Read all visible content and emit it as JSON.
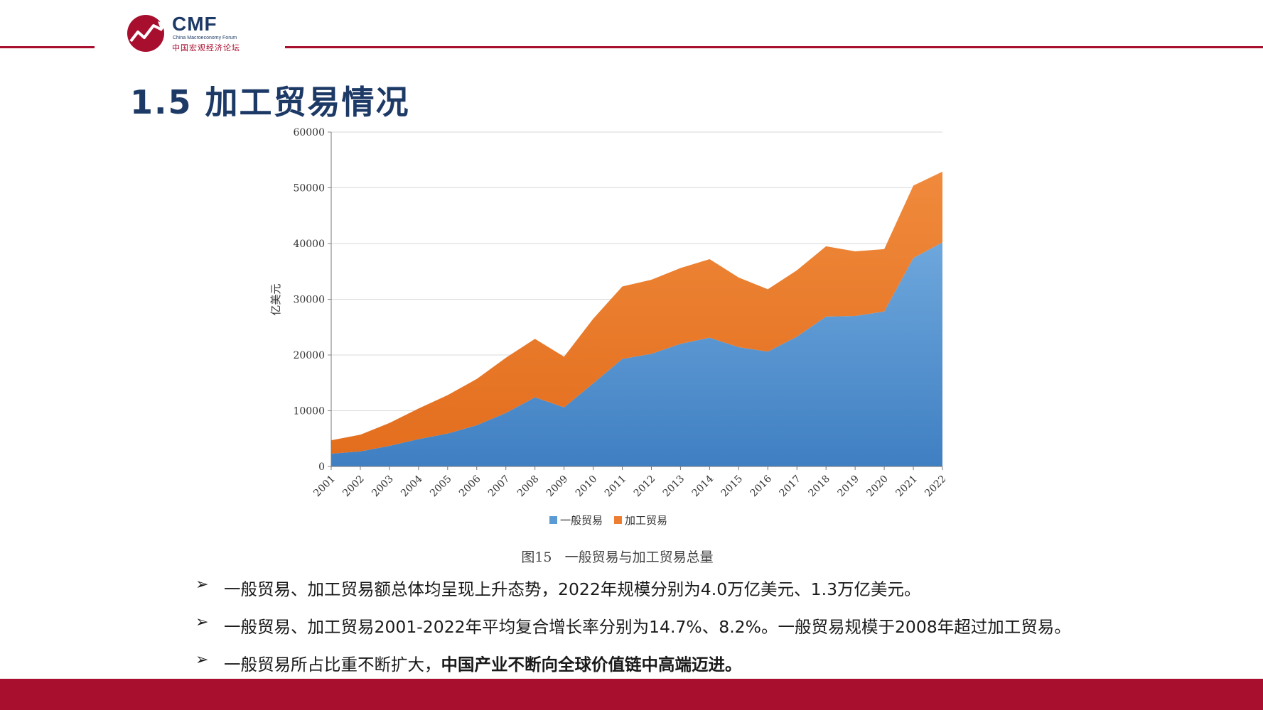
{
  "logo": {
    "name": "CMF",
    "subtitle": "China Macroeconomy Forum",
    "cn_name": "中国宏观经济论坛"
  },
  "title": "1.5 加工贸易情况",
  "chart_data": {
    "type": "area",
    "stacked": true,
    "x": [
      "2001",
      "2002",
      "2003",
      "2004",
      "2005",
      "2006",
      "2007",
      "2008",
      "2009",
      "2010",
      "2011",
      "2012",
      "2013",
      "2014",
      "2015",
      "2016",
      "2017",
      "2018",
      "2019",
      "2020",
      "2021",
      "2022"
    ],
    "series": [
      {
        "name": "一般贸易",
        "color": "#5b9bd5",
        "values": [
          2300,
          2700,
          3700,
          4900,
          5900,
          7400,
          9600,
          12400,
          10600,
          14900,
          19300,
          20200,
          22000,
          23100,
          21400,
          20600,
          23300,
          26900,
          27000,
          27800,
          37400,
          40200
        ]
      },
      {
        "name": "加工贸易",
        "color": "#ed7d31",
        "values": [
          2400,
          3000,
          4100,
          5500,
          6900,
          8300,
          9900,
          10500,
          9100,
          11600,
          13000,
          13300,
          13600,
          14100,
          12500,
          11200,
          11900,
          12600,
          11600,
          11200,
          13000,
          12700
        ]
      }
    ],
    "ylabel": "亿美元",
    "ylim": [
      0,
      60000
    ],
    "yticks": [
      "0",
      "10000",
      "20000",
      "30000",
      "40000",
      "50000",
      "60000"
    ],
    "grid": true,
    "legend": "bottom"
  },
  "caption": "图15   一般贸易与加工贸易总量",
  "bullets": [
    {
      "marker": "➢",
      "text": "一般贸易、加工贸易额总体均呈现上升态势，2022年规模分别为4.0万亿美元、1.3万亿美元。"
    },
    {
      "marker": "➢",
      "text": "一般贸易、加工贸易2001-2022年平均复合增长率分别为14.7%、8.2%。一般贸易规模于2008年超过加工贸易。"
    },
    {
      "marker": "➢",
      "text": "一般贸易所占比重不断扩大，",
      "strong": "中国产业不断向全球价值链中高端迈进。"
    }
  ],
  "colors": {
    "brand_red": "#a80e2e",
    "title_navy": "#1d3a66"
  }
}
